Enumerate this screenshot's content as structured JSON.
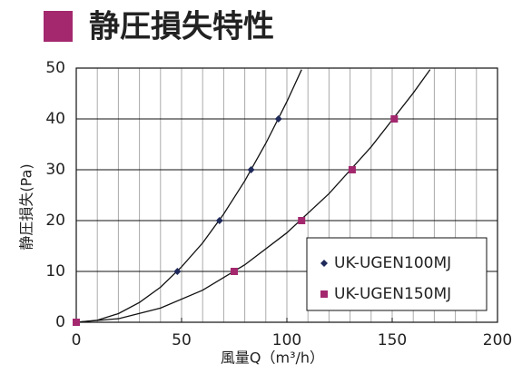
{
  "chart_data": {
    "type": "line",
    "title": "静圧損失特性",
    "title_color": "#a3286e",
    "x_label": "風量Q（m³/h）",
    "y_label": "静圧損失(Pa)",
    "xlim": [
      0,
      200
    ],
    "ylim": [
      0,
      50
    ],
    "xticks": [
      0,
      50,
      100,
      150,
      200
    ],
    "yticks": [
      0,
      10,
      20,
      30,
      40,
      50
    ],
    "xgrid": [
      10,
      20,
      30,
      40,
      50,
      60,
      70,
      80,
      90,
      100,
      110,
      120,
      130,
      140,
      150,
      160,
      170,
      180,
      190
    ],
    "grid": true,
    "series": [
      {
        "name": "UK-UGEN100MJ",
        "color": "#1f2a5a",
        "marker": "diamond",
        "x": [
          0,
          48,
          68,
          83,
          96
        ],
        "values": [
          0,
          10,
          20,
          30,
          40
        ],
        "curve": {
          "x": [
            0,
            10,
            20,
            30,
            40,
            50,
            60,
            70,
            80,
            90,
            100,
            107
          ],
          "values": [
            0,
            0.4,
            1.7,
            3.9,
            6.9,
            10.9,
            15.6,
            21.3,
            27.8,
            35.2,
            43.4,
            49.7
          ]
        }
      },
      {
        "name": "UK-UGEN150MJ",
        "color": "#a3286e",
        "marker": "square",
        "x": [
          0,
          75,
          107,
          131,
          151
        ],
        "values": [
          0,
          10,
          20,
          30,
          40
        ],
        "curve": {
          "x": [
            0,
            20,
            40,
            60,
            80,
            100,
            120,
            140,
            160,
            168
          ],
          "values": [
            0,
            0.7,
            2.8,
            6.3,
            11.3,
            17.6,
            25.3,
            34.5,
            45.1,
            49.7
          ]
        }
      }
    ]
  }
}
